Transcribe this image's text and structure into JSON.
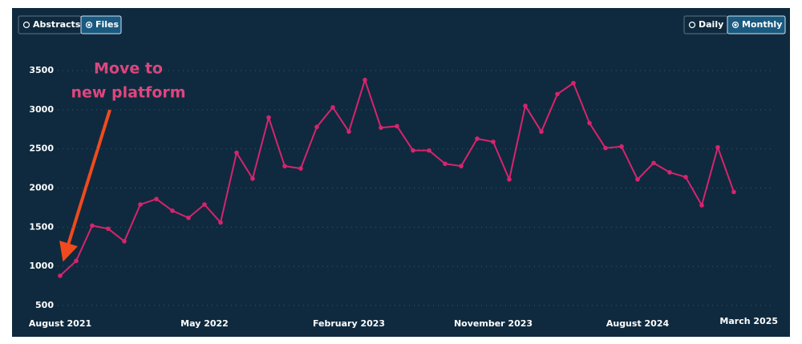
{
  "controls": {
    "left": [
      "Abstracts",
      "Files"
    ],
    "left_selected": "Files",
    "right": [
      "Daily",
      "Monthly"
    ],
    "right_selected": "Monthly"
  },
  "chart_data": {
    "type": "line",
    "annotation": [
      "Move to",
      "new platform"
    ],
    "categories": [
      "August 2021",
      null,
      null,
      null,
      null,
      null,
      null,
      null,
      null,
      "May 2022",
      null,
      null,
      null,
      null,
      null,
      null,
      null,
      null,
      "February 2023",
      null,
      null,
      null,
      null,
      null,
      null,
      null,
      null,
      "November 2023",
      null,
      null,
      null,
      null,
      null,
      null,
      null,
      null,
      "August 2024",
      null,
      null,
      null,
      null,
      null,
      "March 2025"
    ],
    "series": [
      {
        "name": "Files",
        "color": "#d6246e",
        "values": [
          880,
          1070,
          1520,
          1480,
          1320,
          1790,
          1860,
          1710,
          1620,
          1790,
          1560,
          2450,
          2120,
          2900,
          2280,
          2250,
          2780,
          3030,
          2720,
          3380,
          2770,
          2790,
          2480,
          2480,
          2310,
          2280,
          2630,
          2590,
          2110,
          3050,
          2720,
          3200,
          3340,
          2830,
          2510,
          2530,
          2110,
          2320,
          2200,
          2140,
          1780,
          2520,
          1950
        ]
      }
    ],
    "ylim": [
      500,
      3500
    ],
    "yticks": [
      500,
      1000,
      1500,
      2000,
      2500,
      3000,
      3500
    ],
    "grid": true
  }
}
